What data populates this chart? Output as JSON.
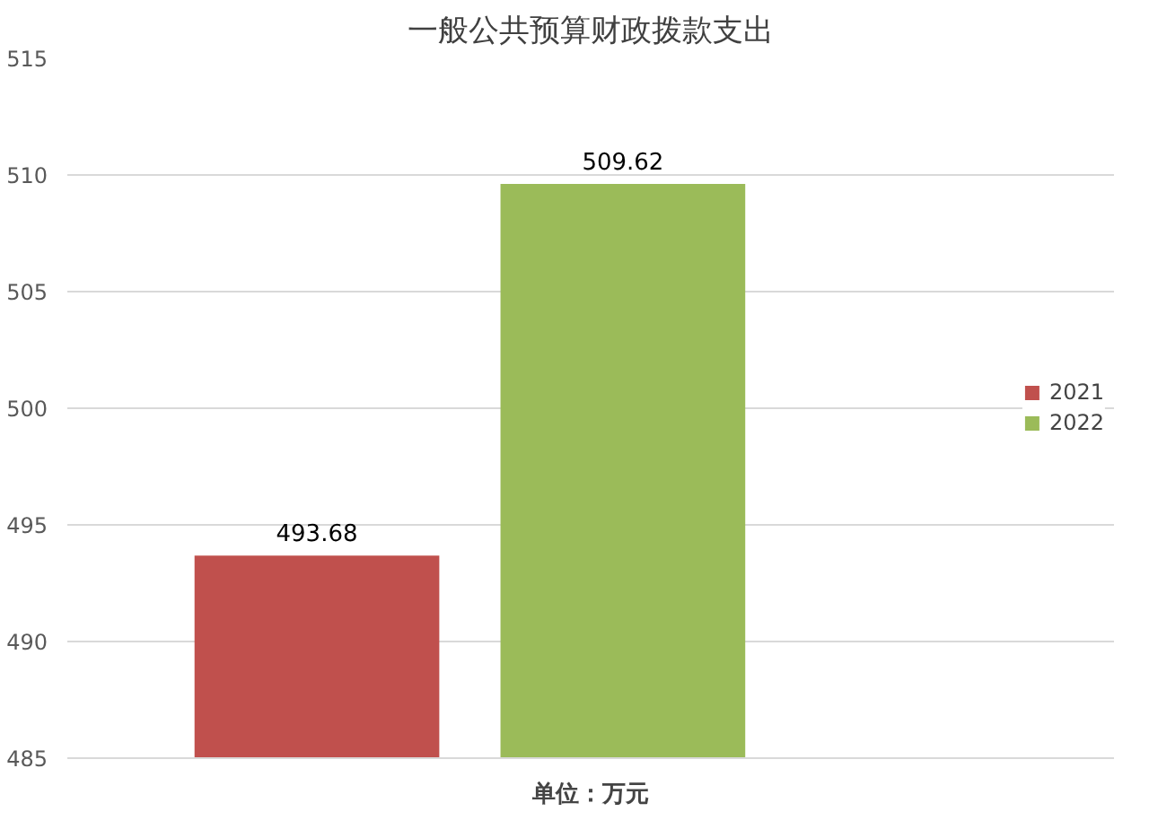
{
  "chart_data": {
    "type": "bar",
    "title": "一般公共预算财政拨款支出",
    "categories": [
      null
    ],
    "series": [
      {
        "name": "2021",
        "color": "#c0504d",
        "values": [
          493.68
        ]
      },
      {
        "name": "2022",
        "color": "#9bbb59",
        "values": [
          509.62
        ]
      }
    ],
    "ylim": [
      485,
      515
    ],
    "yticks": [
      485,
      490,
      495,
      500,
      505,
      510,
      515
    ],
    "grid": "y",
    "legend": "right",
    "data_labels": true,
    "annotations": [
      "单位：万元"
    ]
  }
}
